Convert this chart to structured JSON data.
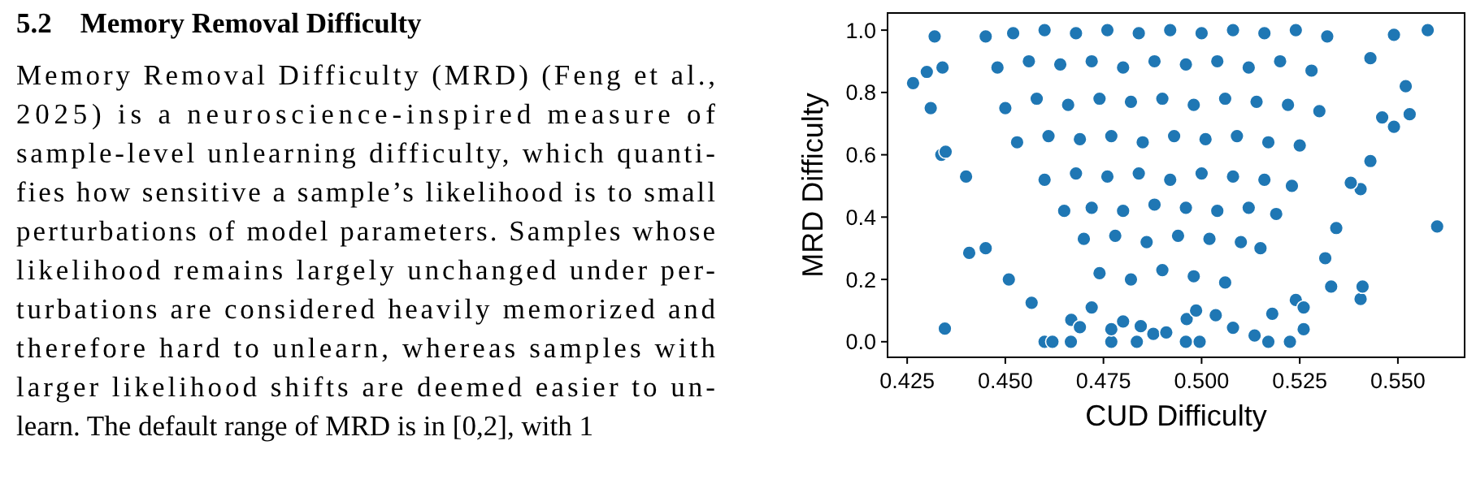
{
  "chart_data": {
    "type": "scatter",
    "title": "5.2    Memory Removal Difficulty",
    "annotations": [
      "Memory Removal Difficulty (MRD) (Feng et al.,",
      "2025) is a neuroscience-inspired measure of",
      "sample-level unlearning difficulty, which quanti-",
      "fies how sensitive a sample’s likelihood is to small",
      "perturbations of model parameters. Samples whose",
      "likelihood remains largely unchanged under per-",
      "turbations are considered heavily memorized and",
      "therefore hard to unlearn, whereas samples with",
      "larger likelihood shifts are deemed easier to un-",
      "learn. The default range of MRD is in [0,2], with 1"
    ],
    "xlabel": "CUD Difficulty",
    "ylabel": "MRD Difficulty",
    "xlim": [
      0.42,
      0.567
    ],
    "ylim": [
      -0.05,
      1.055
    ],
    "xticks": [
      {
        "value": 0.425,
        "label": "0.425"
      },
      {
        "value": 0.45,
        "label": "0.450"
      },
      {
        "value": 0.475,
        "label": "0.475"
      },
      {
        "value": 0.5,
        "label": "0.500"
      },
      {
        "value": 0.525,
        "label": "0.525"
      },
      {
        "value": 0.55,
        "label": "0.550"
      }
    ],
    "yticks": [
      {
        "value": 0,
        "label": "0.0"
      },
      {
        "value": 0.2,
        "label": "0.2"
      },
      {
        "value": 0.4,
        "label": "0.4"
      },
      {
        "value": 0.6,
        "label": "0.6"
      },
      {
        "value": 0.8,
        "label": "0.8"
      },
      {
        "value": 1,
        "label": "1.0"
      }
    ],
    "grid": false,
    "marker": "circle",
    "series": [
      {
        "color": "#1f77b4",
        "x": [
          0.4265,
          0.43,
          0.432,
          0.434,
          0.431,
          0.4337,
          0.4348,
          0.44,
          0.5576,
          0.56,
          0.553,
          0.552,
          0.549,
          0.549,
          0.543,
          0.5405,
          0.538,
          0.546,
          0.543,
          0.4346,
          0.4408,
          0.445,
          0.4509,
          0.4567,
          0.46,
          0.462,
          0.4667,
          0.4668,
          0.469,
          0.472,
          0.477,
          0.477,
          0.48,
          0.4835,
          0.4845,
          0.4877,
          0.491,
          0.496,
          0.4962,
          0.4995,
          0.4986,
          0.5036,
          0.508,
          0.5135,
          0.517,
          0.5225,
          0.518,
          0.524,
          0.526,
          0.526,
          0.533,
          0.5405,
          0.541,
          0.5315,
          0.5343,
          0.445,
          0.452,
          0.46,
          0.468,
          0.476,
          0.484,
          0.492,
          0.5,
          0.508,
          0.516,
          0.524,
          0.532,
          0.448,
          0.456,
          0.464,
          0.472,
          0.48,
          0.488,
          0.496,
          0.504,
          0.512,
          0.52,
          0.528,
          0.45,
          0.458,
          0.466,
          0.474,
          0.482,
          0.49,
          0.498,
          0.506,
          0.514,
          0.522,
          0.53,
          0.453,
          0.461,
          0.469,
          0.477,
          0.485,
          0.493,
          0.501,
          0.509,
          0.517,
          0.525,
          0.46,
          0.468,
          0.476,
          0.484,
          0.492,
          0.5,
          0.508,
          0.516,
          0.523,
          0.465,
          0.472,
          0.48,
          0.488,
          0.496,
          0.504,
          0.512,
          0.519,
          0.47,
          0.478,
          0.486,
          0.494,
          0.502,
          0.51,
          0.515,
          0.474,
          0.482,
          0.49,
          0.498,
          0.506
        ],
        "values": [
          0.83,
          0.866,
          0.98,
          0.88,
          0.75,
          0.6,
          0.61,
          0.53,
          1.0,
          0.37,
          0.73,
          0.82,
          0.985,
          0.69,
          0.58,
          0.49,
          0.51,
          0.72,
          0.91,
          0.042,
          0.285,
          0.3,
          0.2,
          0.125,
          0.0,
          0.0,
          0.0,
          0.07,
          0.047,
          0.11,
          0.0,
          0.04,
          0.065,
          0.0,
          0.05,
          0.025,
          0.03,
          0.0,
          0.073,
          0.0,
          0.1,
          0.085,
          0.045,
          0.02,
          0.0,
          0.0,
          0.09,
          0.134,
          0.04,
          0.11,
          0.177,
          0.137,
          0.177,
          0.268,
          0.365,
          0.98,
          0.99,
          1.0,
          0.99,
          1.0,
          0.99,
          1.0,
          0.99,
          1.0,
          0.99,
          1.0,
          0.98,
          0.88,
          0.9,
          0.89,
          0.9,
          0.88,
          0.9,
          0.89,
          0.9,
          0.88,
          0.9,
          0.87,
          0.75,
          0.78,
          0.76,
          0.78,
          0.77,
          0.78,
          0.76,
          0.78,
          0.77,
          0.76,
          0.74,
          0.64,
          0.66,
          0.65,
          0.66,
          0.64,
          0.66,
          0.65,
          0.66,
          0.64,
          0.63,
          0.52,
          0.54,
          0.53,
          0.54,
          0.52,
          0.54,
          0.53,
          0.52,
          0.5,
          0.42,
          0.43,
          0.42,
          0.44,
          0.43,
          0.42,
          0.43,
          0.41,
          0.33,
          0.34,
          0.32,
          0.34,
          0.33,
          0.32,
          0.3,
          0.22,
          0.2,
          0.23,
          0.21,
          0.19
        ]
      }
    ]
  }
}
